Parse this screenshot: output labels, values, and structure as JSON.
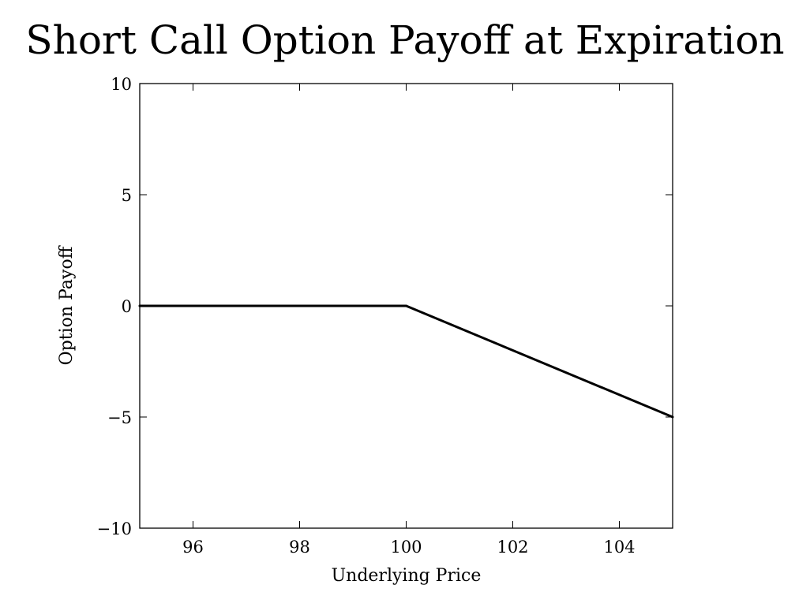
{
  "chart_data": {
    "type": "line",
    "title": "Short Call Option Payoff at Expiration",
    "xlabel": "Underlying Price",
    "ylabel": "Option Payoff",
    "xlim": [
      95,
      105
    ],
    "ylim": [
      -10,
      10
    ],
    "xticks": [
      96,
      98,
      100,
      102,
      104
    ],
    "yticks": [
      -10,
      -5,
      0,
      5,
      10
    ],
    "ytick_labels": [
      "−10",
      "−5",
      "0",
      "5",
      "10"
    ],
    "grid": false,
    "series": [
      {
        "color": "#000000",
        "x": [
          95,
          100,
          105
        ],
        "y": [
          0,
          0,
          -5
        ]
      }
    ]
  }
}
